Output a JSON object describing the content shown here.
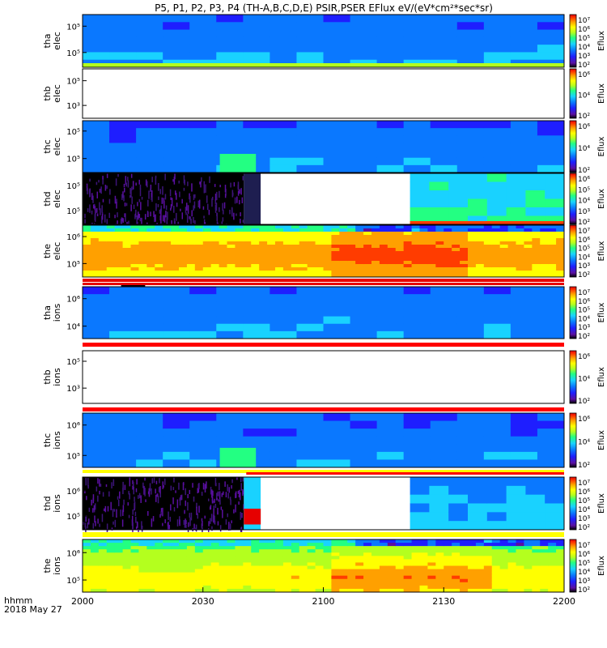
{
  "title": "P5, P1, P2, P3, P4 (TH-A,B,C,D,E) PSIR,PSER EFlux eV/(eV*cm²*sec*sr)",
  "footer": {
    "label": "hhmm",
    "date": "2018 May 27"
  },
  "chart_data": {
    "type": "heatmap",
    "x_ticks": [
      "2000",
      "2030",
      "2100",
      "2130",
      "2200"
    ],
    "x_range": [
      "2000",
      "2200"
    ],
    "colormap": [
      "#ffffff",
      "#000000",
      "#5a0fa0",
      "#1e1eff",
      "#0a78ff",
      "#19d2ff",
      "#23ff82",
      "#b4ff1e",
      "#ffff00",
      "#ffa000",
      "#ff3c00",
      "#e60000"
    ],
    "panels": [
      {
        "probe": "tha",
        "species": "elec",
        "label_top": "tha",
        "label_bottom": "elec",
        "yticks": [
          "10⁵",
          "10⁵"
        ],
        "cbar_label": "Eflux",
        "cbar_ticks": [
          "10⁷",
          "10⁶",
          "10⁵",
          "10⁴",
          "10³",
          "10²"
        ]
      },
      {
        "probe": "thb",
        "species": "elec",
        "label_top": "thb",
        "label_bottom": "elec",
        "yticks": [
          "10⁵",
          "10³"
        ],
        "cbar_label": "Eflux",
        "cbar_ticks": [
          "10⁶",
          "10⁴",
          "10²"
        ]
      },
      {
        "probe": "thc",
        "species": "elec",
        "label_top": "thc",
        "label_bottom": "elec",
        "yticks": [
          "10⁵",
          "10⁵"
        ],
        "cbar_label": "Eflux",
        "cbar_ticks": [
          "10⁶",
          "10⁴",
          "10²"
        ]
      },
      {
        "probe": "thd",
        "species": "elec",
        "label_top": "thd",
        "label_bottom": "elec",
        "yticks": [
          "10⁵",
          "10⁵"
        ],
        "cbar_label": "Eflux",
        "cbar_ticks": [
          "10⁶",
          "10⁵",
          "10⁴",
          "10³",
          "10²"
        ]
      },
      {
        "probe": "the",
        "species": "elec",
        "label_top": "the",
        "label_bottom": "elec",
        "yticks": [
          "10⁶",
          "10⁵"
        ],
        "cbar_label": "Eflux",
        "cbar_ticks": [
          "10⁷",
          "10⁶",
          "10⁵",
          "10⁴",
          "10³",
          "10²"
        ]
      },
      {
        "probe": "tha",
        "species": "ions",
        "label_top": "tha",
        "label_bottom": "ions",
        "yticks": [
          "10⁶",
          "10⁴"
        ],
        "cbar_label": "Eflux",
        "cbar_ticks": [
          "10⁷",
          "10⁶",
          "10⁵",
          "10⁴",
          "10³",
          "10²"
        ]
      },
      {
        "probe": "thb",
        "species": "ions",
        "label_top": "thb",
        "label_bottom": "ions",
        "yticks": [
          "10⁵",
          "10³"
        ],
        "cbar_label": "Eflux",
        "cbar_ticks": [
          "10⁶",
          "10⁴",
          "10²"
        ]
      },
      {
        "probe": "thc",
        "species": "ions",
        "label_top": "thc",
        "label_bottom": "ions",
        "yticks": [
          "10⁶",
          "10⁵"
        ],
        "cbar_label": "Eflux",
        "cbar_ticks": [
          "10⁶",
          "10⁴",
          "10²"
        ]
      },
      {
        "probe": "thd",
        "species": "ions",
        "label_top": "thd",
        "label_bottom": "ions",
        "yticks": [
          "10⁶",
          "10⁵"
        ],
        "cbar_label": "Eflux",
        "cbar_ticks": [
          "10⁷",
          "10⁶",
          "10⁵",
          "10⁴",
          "10³",
          "10²"
        ]
      },
      {
        "probe": "the",
        "species": "ions",
        "label_top": "the",
        "label_bottom": "ions",
        "yticks": [
          "10⁶",
          "10⁵"
        ],
        "cbar_label": "Eflux",
        "cbar_ticks": [
          "10⁷",
          "10⁶",
          "10⁵",
          "10⁴",
          "10³",
          "10²"
        ]
      }
    ]
  }
}
